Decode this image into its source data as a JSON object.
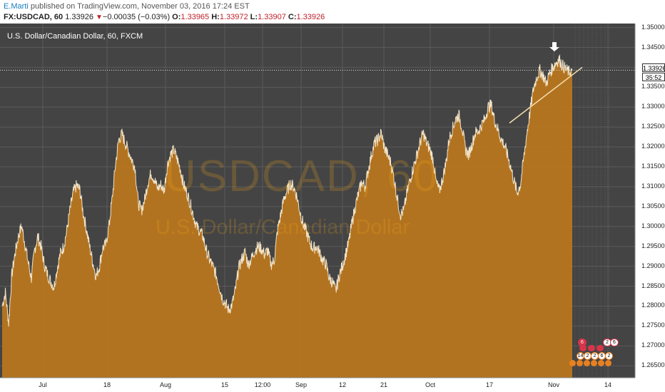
{
  "header": {
    "author": "E.Marti",
    "published": "published on TradingView.com, November 03, 2016 17:24 EST",
    "symbol": "FX:USDCAD, 60",
    "last": "1.33926",
    "change": "−0.00035 (−0.03%)",
    "open_label": "O:",
    "open": "1.33965",
    "high_label": "H:",
    "high": "1.33972",
    "low_label": "L:",
    "low": "1.33907",
    "close_label": "C:",
    "close": "1.33926"
  },
  "plot": {
    "title": "U.S. Dollar/Canadian Dollar, 60, FXCM",
    "watermark_symbol": "USDCAD, 60",
    "watermark_name": "U.S. Dollar/Canadian Dollar",
    "last_price_tag": "1.33926",
    "countdown_tag": "35:52"
  },
  "events": {
    "row1": [
      "6",
      "2",
      "6"
    ],
    "row2": [
      "14",
      "2",
      "2",
      "6",
      "2"
    ]
  },
  "colors": {
    "background": "#444444",
    "area_fill": "#b8761f",
    "price_line": "#f2e4c8",
    "trendline": "#f5e0b0",
    "grid": "#5a5a5a",
    "event_red": "#d8354a",
    "event_orange": "#e88020"
  },
  "chart_data": {
    "type": "area",
    "symbol": "FX:USDCAD",
    "interval": "60",
    "x_tick_labels": [
      "Jul",
      "18",
      "Aug",
      "15",
      "12:00",
      "Sep",
      "12",
      "21",
      "Oct",
      "17",
      "Nov",
      "14"
    ],
    "y_tick_labels": [
      "1.35000",
      "1.34500",
      "1.34000",
      "1.33500",
      "1.33000",
      "1.32500",
      "1.32000",
      "1.31500",
      "1.31000",
      "1.30500",
      "1.30000",
      "1.29500",
      "1.29000",
      "1.28500",
      "1.28000",
      "1.27500",
      "1.27000",
      "1.26500"
    ],
    "ylim": [
      1.262,
      1.351
    ],
    "last_price": 1.33926,
    "grid": true,
    "price_series": [
      1.28,
      1.2834,
      1.2757,
      1.288,
      1.2933,
      1.2975,
      1.3002,
      1.2958,
      1.2912,
      1.287,
      1.294,
      1.2975,
      1.295,
      1.2905,
      1.288,
      1.2862,
      1.2848,
      1.2895,
      1.2933,
      1.295,
      1.2991,
      1.3045,
      1.3087,
      1.3103,
      1.3092,
      1.3035,
      1.2994,
      1.295,
      1.291,
      1.2875,
      1.29,
      1.2945,
      1.2955,
      1.3002,
      1.3072,
      1.3157,
      1.3218,
      1.3232,
      1.321,
      1.319,
      1.3168,
      1.315,
      1.306,
      1.304,
      1.3068,
      1.311,
      1.3135,
      1.3118,
      1.3095,
      1.3105,
      1.309,
      1.3155,
      1.318,
      1.3192,
      1.317,
      1.3145,
      1.3105,
      1.3085,
      1.306,
      1.303,
      1.3,
      1.299,
      1.2975,
      1.294,
      1.2918,
      1.29,
      1.288,
      1.285,
      1.282,
      1.2805,
      1.279,
      1.2805,
      1.284,
      1.2895,
      1.2918,
      1.2935,
      1.2905,
      1.292,
      1.294,
      1.295,
      1.2945,
      1.293,
      1.294,
      1.2905,
      1.2915,
      1.299,
      1.303,
      1.307,
      1.309,
      1.3108,
      1.31,
      1.3075,
      1.3035,
      1.3005,
      1.2985,
      1.296,
      1.2945,
      1.295,
      1.2935,
      1.2915,
      1.2905,
      1.287,
      1.286,
      1.2838,
      1.2875,
      1.29,
      1.293,
      1.296,
      1.301,
      1.305,
      1.3082,
      1.3112,
      1.31,
      1.314,
      1.318,
      1.321,
      1.3218,
      1.3235,
      1.3198,
      1.318,
      1.316,
      1.312,
      1.307,
      1.303,
      1.304,
      1.3085,
      1.312,
      1.315,
      1.3178,
      1.321,
      1.3235,
      1.321,
      1.3195,
      1.317,
      1.311,
      1.309,
      1.312,
      1.316,
      1.322,
      1.3245,
      1.327,
      1.328,
      1.3248,
      1.3195,
      1.318,
      1.3205,
      1.3235,
      1.324,
      1.3255,
      1.327,
      1.33,
      1.3305,
      1.3268,
      1.3245,
      1.322,
      1.3205,
      1.318,
      1.315,
      1.3115,
      1.3085,
      1.3105,
      1.317,
      1.3235,
      1.329,
      1.3345,
      1.3375,
      1.3392,
      1.338,
      1.336,
      1.3385,
      1.34,
      1.3412,
      1.342,
      1.3405,
      1.3395,
      1.3388,
      1.33926
    ],
    "annotations": [
      {
        "type": "arrow_down",
        "at_price": 1.344
      },
      {
        "type": "trendline",
        "from_price": 1.326,
        "to_price": 1.34
      }
    ]
  }
}
